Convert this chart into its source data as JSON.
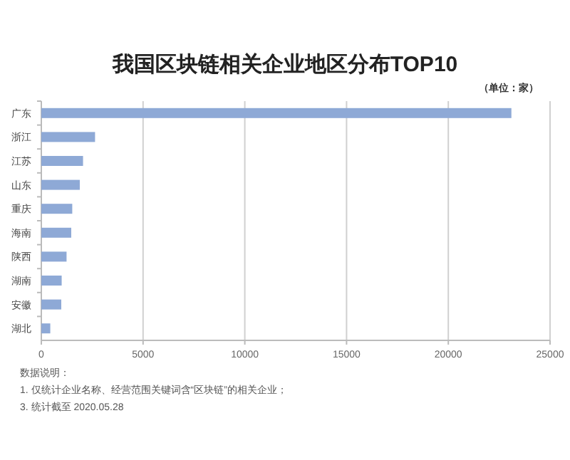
{
  "chart_data": {
    "type": "bar",
    "orientation": "horizontal",
    "title": "我国区块链相关企业地区分布TOP10",
    "categories": [
      "广东",
      "浙江",
      "江苏",
      "山东",
      "重庆",
      "海南",
      "陕西",
      "湖南",
      "安徽",
      "湖北"
    ],
    "values": [
      23100,
      2640,
      2050,
      1890,
      1520,
      1470,
      1240,
      1000,
      980,
      440
    ],
    "color": "#8ea9d6",
    "xlim": [
      0,
      25000
    ],
    "xticks": [
      0,
      5000,
      10000,
      15000,
      20000,
      25000
    ],
    "grid": "x",
    "annotations": [
      "（单位：家）",
      "数据说明：",
      "1. 仅统计企业名称、经营范围关键词含“区块链”的相关企业；",
      "3. 统计截至 2020.05.28"
    ]
  }
}
